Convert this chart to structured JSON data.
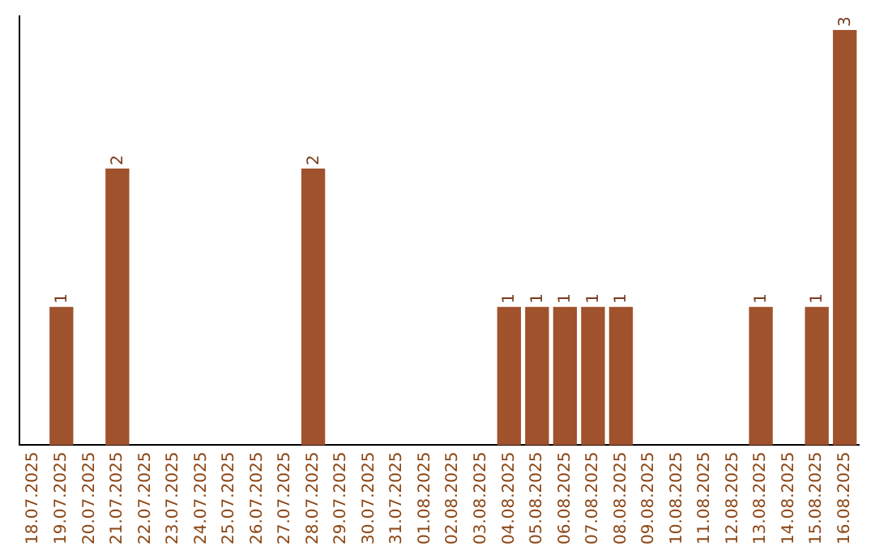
{
  "chart_data": {
    "type": "bar",
    "categories": [
      "18.07.2025",
      "19.07.2025",
      "20.07.2025",
      "21.07.2025",
      "22.07.2025",
      "23.07.2025",
      "24.07.2025",
      "25.07.2025",
      "26.07.2025",
      "27.07.2025",
      "28.07.2025",
      "29.07.2025",
      "30.07.2025",
      "31.07.2025",
      "01.08.2025",
      "02.08.2025",
      "03.08.2025",
      "04.08.2025",
      "05.08.2025",
      "06.08.2025",
      "07.08.2025",
      "08.08.2025",
      "09.08.2025",
      "10.08.2025",
      "11.08.2025",
      "12.08.2025",
      "13.08.2025",
      "14.08.2025",
      "15.08.2025",
      "16.08.2025"
    ],
    "values": [
      0,
      1,
      0,
      2,
      0,
      0,
      0,
      0,
      0,
      0,
      2,
      0,
      0,
      0,
      0,
      0,
      0,
      1,
      1,
      1,
      1,
      1,
      0,
      0,
      0,
      0,
      1,
      0,
      1,
      3
    ],
    "value_labels": [
      null,
      "1",
      null,
      "2",
      null,
      null,
      null,
      null,
      null,
      null,
      "2",
      null,
      null,
      null,
      null,
      null,
      null,
      "1",
      "1",
      "1",
      "1",
      "1",
      null,
      null,
      null,
      null,
      "1",
      null,
      "1",
      "3"
    ],
    "color": "#a0522d",
    "ylim": [
      0,
      3.1
    ],
    "tick_labels": "x",
    "grid": false,
    "legend": false
  }
}
